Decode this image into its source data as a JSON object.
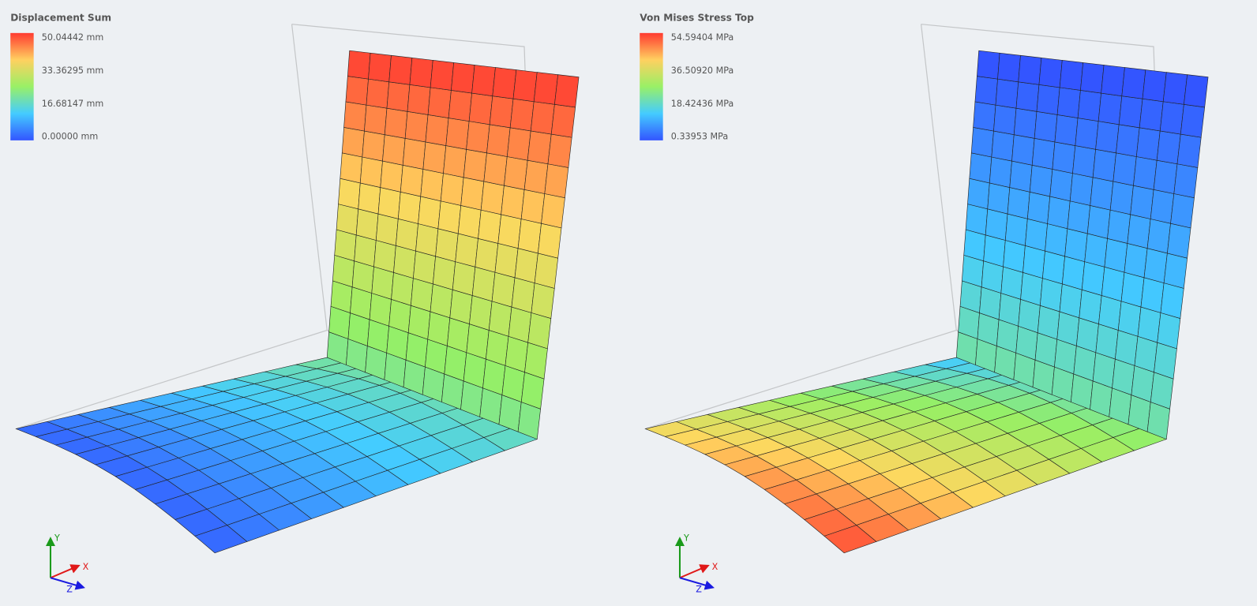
{
  "panels": [
    {
      "title": "Displacement Sum",
      "legend": [
        "50.04442 mm",
        "33.36295 mm",
        "16.68147 mm",
        "0.00000 mm"
      ],
      "axes": {
        "x": "X",
        "y": "Y",
        "z": "Z"
      }
    },
    {
      "title": "Von Mises Stress Top",
      "legend": [
        "54.59404 MPa",
        "36.50920 MPa",
        "18.42436 MPa",
        "0.33953 MPa"
      ],
      "axes": {
        "x": "X",
        "y": "Y",
        "z": "Z"
      }
    }
  ]
}
